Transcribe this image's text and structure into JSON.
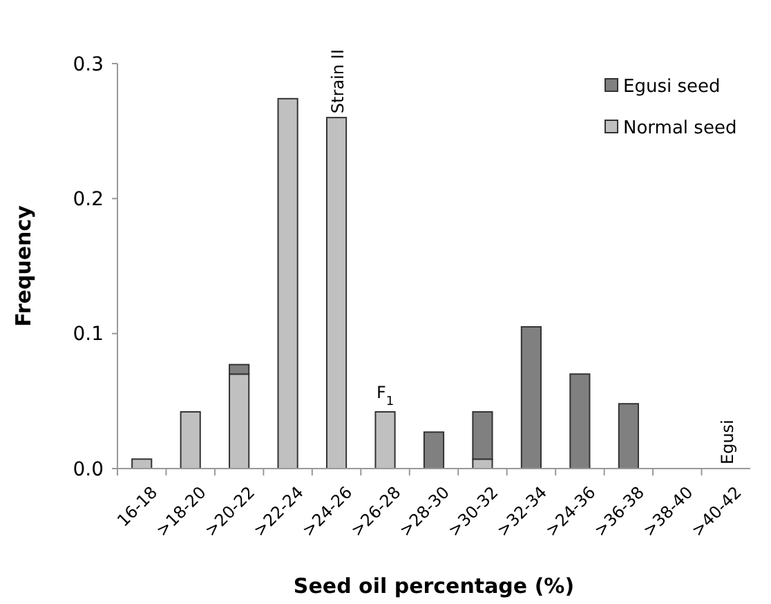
{
  "chart_data": {
    "type": "bar",
    "stacked": true,
    "xlabel": "Seed oil percentage (%)",
    "ylabel": "Frequency",
    "categories": [
      "16-18",
      ">18-20",
      ">20-22",
      ">22-24",
      ">24-26",
      ">26-28",
      ">28-30",
      ">30-32",
      ">32-34",
      ">24-36",
      ">36-38",
      ">38-40",
      ">40-42"
    ],
    "series": [
      {
        "name": "Normal seed",
        "color": "#c0c0c0",
        "values": [
          0.007,
          0.042,
          0.07,
          0.274,
          0.26,
          0.042,
          null,
          0.007,
          null,
          null,
          null,
          null,
          null
        ]
      },
      {
        "name": "Egusi seed",
        "color": "#808080",
        "values": [
          null,
          null,
          0.007,
          null,
          null,
          null,
          0.027,
          0.035,
          0.105,
          0.07,
          0.048,
          null,
          null
        ]
      }
    ],
    "ylim": [
      0,
      0.3
    ],
    "yticks": [
      {
        "value": 0,
        "label": "0.0"
      },
      0.1,
      0.2,
      0.3
    ],
    "grid": false,
    "legend": "top right",
    "annotations": [
      {
        "text": "Strain II",
        "x": ">24-26",
        "y": 0.26
      },
      {
        "text": "F$_{1}$",
        "x": ">26-28",
        "y": 0.042
      },
      "Egusi"
    ]
  }
}
